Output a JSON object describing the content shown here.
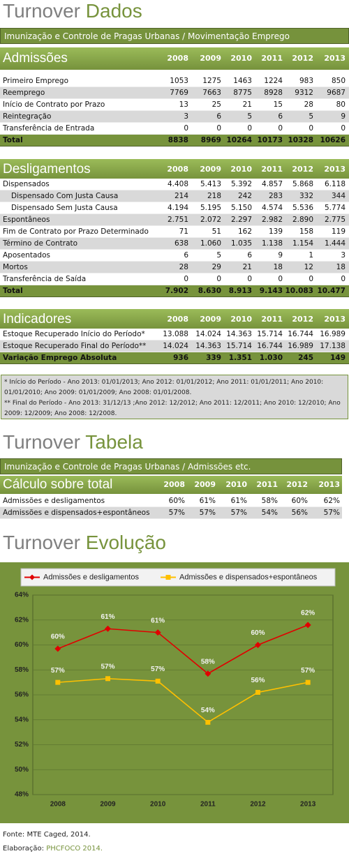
{
  "dados": {
    "title": "Turnover",
    "title_accent": "Dados",
    "subtitle": "Imunização e Controle de Pragas Urbanas / Movimentação Emprego",
    "tables": [
      {
        "header": "Admissões",
        "years": [
          "2008",
          "2009",
          "2010",
          "2011",
          "2012",
          "2013"
        ],
        "rows": [
          {
            "label": "Primeiro Emprego",
            "cells": [
              "1053",
              "1275",
              "1463",
              "1224",
              "983",
              "850"
            ]
          },
          {
            "label": "Reemprego",
            "cells": [
              "7769",
              "7663",
              "8775",
              "8928",
              "9312",
              "9687"
            ]
          },
          {
            "label": "Início de Contrato por Prazo",
            "cells": [
              "13",
              "25",
              "21",
              "15",
              "28",
              "80"
            ]
          },
          {
            "label": "Reintegração",
            "cells": [
              "3",
              "6",
              "5",
              "6",
              "5",
              "9"
            ]
          },
          {
            "label": "Transferência de Entrada",
            "cells": [
              "0",
              "0",
              "0",
              "0",
              "0",
              "0"
            ]
          }
        ],
        "total": {
          "label": "Total",
          "cells": [
            "8838",
            "8969",
            "10264",
            "10173",
            "10328",
            "10626"
          ]
        }
      },
      {
        "header": "Desligamentos",
        "years": [
          "2008",
          "2009",
          "2010",
          "2011",
          "2012",
          "2013"
        ],
        "rows": [
          {
            "label": "Dispensados",
            "cells": [
              "4.408",
              "5.413",
              "5.392",
              "4.857",
              "5.868",
              "6.118"
            ]
          },
          {
            "label": "Dispensado Com Justa Causa",
            "indent": true,
            "cells": [
              "214",
              "218",
              "242",
              "283",
              "332",
              "344"
            ]
          },
          {
            "label": "Dispensado Sem Justa Causa",
            "indent": true,
            "cells": [
              "4.194",
              "5.195",
              "5.150",
              "4.574",
              "5.536",
              "5.774"
            ]
          },
          {
            "label": "Espontâneos",
            "cells": [
              "2.751",
              "2.072",
              "2.297",
              "2.982",
              "2.890",
              "2.775"
            ]
          },
          {
            "label": "Fim de Contrato por Prazo Determinado",
            "cells": [
              "71",
              "51",
              "162",
              "139",
              "158",
              "119"
            ]
          },
          {
            "label": "Término de Contrato",
            "cells": [
              "638",
              "1.060",
              "1.035",
              "1.138",
              "1.154",
              "1.444"
            ]
          },
          {
            "label": "Aposentados",
            "cells": [
              "6",
              "5",
              "6",
              "9",
              "1",
              "3"
            ]
          },
          {
            "label": "Mortos",
            "cells": [
              "28",
              "29",
              "21",
              "18",
              "12",
              "18"
            ]
          },
          {
            "label": "Transferência de Saída",
            "cells": [
              "0",
              "0",
              "0",
              "0",
              "0",
              "0"
            ]
          }
        ],
        "total": {
          "label": "Total",
          "cells": [
            "7.902",
            "8.630",
            "8.913",
            "9.143",
            "10.083",
            "10.477"
          ]
        }
      },
      {
        "header": "Indicadores",
        "years": [
          "2008",
          "2009",
          "2010",
          "2011",
          "2012",
          "2013"
        ],
        "rows": [
          {
            "label": "Estoque Recuperado Início do Período*",
            "cells": [
              "13.088",
              "14.024",
              "14.363",
              "15.714",
              "16.744",
              "16.989"
            ]
          },
          {
            "label": "Estoque Recuperado Final do Período**",
            "cells": [
              "14.024",
              "14.363",
              "15.714",
              "16.744",
              "16.989",
              "17.138"
            ]
          }
        ],
        "total": {
          "label": "Variação Emprego Absoluta",
          "cells": [
            "936",
            "339",
            "1.351",
            "1.030",
            "245",
            "149"
          ]
        }
      }
    ],
    "notes": [
      "* Início do Período - Ano 2013: 01/01/2013; Ano 2012: 01/01/2012; Ano 2011: 01/01/2011; Ano 2010: 01/01/2010; Ano 2009: 01/01/2009; Ano 2008: 01/01/2008.",
      "** Final do Período - Ano 2013: 31/12/13 ;Ano 2012: 12/2012; Ano 2011: 12/2011; Ano 2010: 12/2010; Ano 2009: 12/2009; Ano 2008: 12/2008."
    ]
  },
  "tabela": {
    "title": "Turnover",
    "title_accent": "Tabela",
    "subtitle": "Imunização e Controle de Pragas Urbanas / Admissões etc.",
    "table": {
      "header": "Cálculo sobre total",
      "years": [
        "2008",
        "2009",
        "2010",
        "2011",
        "2012",
        "2013"
      ],
      "rows": [
        {
          "label": "Admissões e desligamentos",
          "cells": [
            "60%",
            "61%",
            "61%",
            "58%",
            "60%",
            "62%"
          ]
        },
        {
          "label": "Admissões e dispensados+espontâneos",
          "cells": [
            "57%",
            "57%",
            "57%",
            "54%",
            "56%",
            "57%"
          ]
        }
      ]
    }
  },
  "evolucao": {
    "title": "Turnover",
    "title_accent": "Evolução"
  },
  "chart_data": {
    "type": "line",
    "categories": [
      "2008",
      "2009",
      "2010",
      "2011",
      "2012",
      "2013"
    ],
    "series": [
      {
        "name": "Admissões e desligamentos",
        "color": "#e00000",
        "marker": "diamond",
        "values": [
          59.7,
          61.3,
          61.0,
          57.7,
          60.0,
          61.6
        ],
        "value_labels": [
          "60%",
          "61%",
          "61%",
          "58%",
          "60%",
          "62%"
        ]
      },
      {
        "name": "Admissões e dispensados+espontâneos",
        "color": "#ffc000",
        "marker": "square",
        "values": [
          57.0,
          57.3,
          57.1,
          53.8,
          56.2,
          57.0
        ],
        "value_labels": [
          "57%",
          "57%",
          "57%",
          "54%",
          "56%",
          "57%"
        ]
      }
    ],
    "ylim": [
      48,
      64
    ],
    "yticks": [
      {
        "value": 48,
        "label": "48%"
      },
      {
        "value": 50,
        "label": "50%"
      },
      {
        "value": 52,
        "label": "52%"
      },
      {
        "value": 54,
        "label": "54%"
      },
      {
        "value": 56,
        "label": "56%"
      },
      {
        "value": 58,
        "label": "58%"
      },
      {
        "value": 60,
        "label": "60%"
      },
      {
        "value": 62,
        "label": "62%"
      },
      {
        "value": 64,
        "label": "64%"
      }
    ],
    "grid": true,
    "legend": "top"
  },
  "footer": {
    "source": "Fonte: MTE Caged, 2014.",
    "credit_label": "Elaboração:",
    "credit_value": "PHCFOCO 2014."
  }
}
